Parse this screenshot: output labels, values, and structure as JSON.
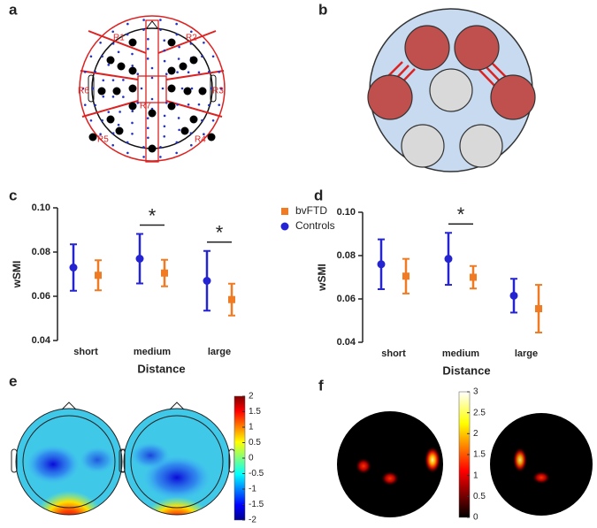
{
  "panels": [
    "a",
    "b",
    "c",
    "d",
    "e",
    "f"
  ],
  "regions": [
    "R1",
    "R2",
    "R3",
    "R4",
    "R5",
    "R6",
    "R7"
  ],
  "chart_data": [
    {
      "type": "errorbar",
      "categories": [
        "short",
        "medium",
        "large"
      ],
      "xlabel": "Distance",
      "ylabel": "wSMI",
      "ylim": [
        0.04,
        0.1
      ],
      "yticks": [
        0.04,
        0.06,
        0.08,
        {
          "value": 0.1,
          "label": "0.10"
        }
      ],
      "legend": "upper right",
      "series": [
        {
          "name": "Controls",
          "color": "#2424d2",
          "marker": "circle",
          "values": [
            0.073,
            0.077,
            0.067
          ],
          "errors": [
            0.0105,
            0.0112,
            0.0135
          ]
        },
        {
          "name": "bvFTD",
          "color": "#f07b22",
          "marker": "square",
          "values": [
            0.0695,
            0.0705,
            0.0585
          ],
          "errors": [
            0.0068,
            0.006,
            0.0072
          ]
        }
      ],
      "annotations": [
        {
          "text": "*",
          "category": "medium"
        },
        {
          "text": "*",
          "category": "large"
        }
      ]
    },
    {
      "type": "errorbar",
      "categories": [
        "short",
        "medium",
        "large"
      ],
      "xlabel": "Distance",
      "ylabel": "wSMI",
      "ylim": [
        0.04,
        0.1
      ],
      "yticks": [
        0.04,
        0.06,
        0.08,
        {
          "value": 0.1,
          "label": "0.10"
        }
      ],
      "series": [
        {
          "color": "#2424d2",
          "marker": "circle",
          "values": [
            0.076,
            0.0785,
            0.0615
          ],
          "errors": [
            0.0115,
            0.012,
            0.0078
          ]
        },
        {
          "color": "#f07b22",
          "marker": "square",
          "values": [
            0.0705,
            0.07,
            0.0555
          ],
          "errors": [
            0.008,
            0.0052,
            0.011
          ]
        }
      ],
      "annotations": [
        {
          "text": "*",
          "category": "medium"
        }
      ]
    }
  ],
  "colorbar_e": {
    "ticks": [
      2,
      1.5,
      1,
      0.5,
      0,
      -0.5,
      -1,
      -1.5,
      -2
    ],
    "lim": [
      -2,
      2
    ]
  },
  "colorbar_f": {
    "ticks": [
      3,
      2.5,
      2,
      1.5,
      1,
      0.5,
      0
    ],
    "lim": [
      0,
      3
    ]
  }
}
